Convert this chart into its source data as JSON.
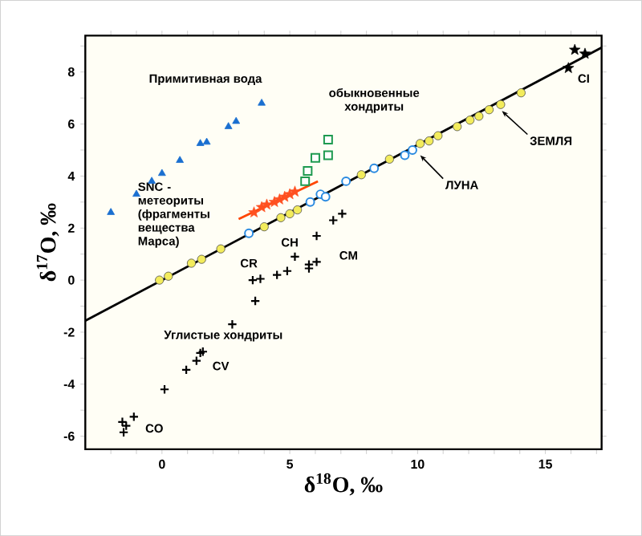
{
  "chart_data": {
    "type": "scatter",
    "xlabel": "δ$^{18}$O, ‰",
    "ylabel": "δ$^{17}$O, ‰",
    "xlim": [
      -3,
      17.2
    ],
    "ylim": [
      -6.5,
      9.4
    ],
    "xticks": [
      {
        "value": -2,
        "label": null
      },
      {
        "value": -1,
        "label": null
      },
      0,
      {
        "value": 1,
        "label": null
      },
      {
        "value": 2,
        "label": null
      },
      {
        "value": 3,
        "label": null
      },
      {
        "value": 4,
        "label": null
      },
      5,
      {
        "value": 6,
        "label": null
      },
      {
        "value": 7,
        "label": null
      },
      {
        "value": 8,
        "label": null
      },
      {
        "value": 9,
        "label": null
      },
      10,
      {
        "value": 11,
        "label": null
      },
      {
        "value": 12,
        "label": null
      },
      {
        "value": 13,
        "label": null
      },
      {
        "value": 14,
        "label": null
      },
      15,
      {
        "value": 16,
        "label": null
      },
      {
        "value": 17,
        "label": null
      }
    ],
    "yticks": [
      -6,
      {
        "value": -5,
        "label": null
      },
      -4,
      {
        "value": -3,
        "label": null
      },
      -2,
      {
        "value": -1,
        "label": null
      },
      0,
      {
        "value": 1,
        "label": null
      },
      2,
      {
        "value": 3,
        "label": null
      },
      4,
      {
        "value": 5,
        "label": null
      },
      6,
      {
        "value": 7,
        "label": null
      },
      8,
      {
        "value": 9,
        "label": null
      }
    ],
    "series": [
      {
        "type": "line",
        "color": "#000000",
        "x": [
          -3,
          17.2
        ],
        "values": [
          -1.56,
          8.94
        ]
      },
      {
        "type": "line",
        "color": "#ff4500",
        "x": [
          3.0,
          6.1
        ],
        "values": [
          2.35,
          3.8
        ]
      },
      {
        "marker": "triangle",
        "color": "#1a6fd0",
        "x": [
          -2.0,
          -1.0,
          -0.4,
          0.0,
          0.7,
          1.5,
          1.75,
          2.6,
          2.9,
          3.9
        ],
        "values": [
          2.6,
          3.3,
          3.8,
          4.1,
          4.6,
          5.25,
          5.3,
          5.9,
          6.1,
          6.8
        ]
      },
      {
        "marker": "square",
        "color": "#1e9a50",
        "x": [
          5.6,
          5.7,
          6.0,
          6.5,
          6.5
        ],
        "values": [
          3.8,
          4.2,
          4.7,
          4.8,
          5.4
        ]
      },
      {
        "marker": "star",
        "color": "#ff5020",
        "x": [
          3.6,
          3.9,
          4.1,
          4.4,
          4.6,
          4.8,
          5.0,
          5.2
        ],
        "values": [
          2.6,
          2.8,
          2.9,
          3.0,
          3.1,
          3.2,
          3.3,
          3.4
        ]
      },
      {
        "marker": "circle",
        "color": "#2a8ae0",
        "x": [
          3.4,
          5.8,
          6.2,
          6.4,
          7.2,
          8.3,
          9.5,
          9.8
        ],
        "values": [
          1.8,
          3.0,
          3.3,
          3.2,
          3.8,
          4.3,
          4.8,
          5.0
        ]
      },
      {
        "marker": "circle",
        "color": "#f3ec5c",
        "x": [
          -0.1,
          0.25,
          1.15,
          1.55,
          2.3,
          4.0,
          4.65,
          5.0,
          5.3,
          7.8,
          8.9,
          10.1,
          10.45,
          10.8,
          11.55,
          12.05,
          12.4,
          12.8,
          13.25,
          14.05
        ],
        "values": [
          0.0,
          0.15,
          0.65,
          0.8,
          1.2,
          2.05,
          2.4,
          2.55,
          2.7,
          4.05,
          4.65,
          5.25,
          5.35,
          5.55,
          5.9,
          6.15,
          6.3,
          6.55,
          6.75,
          7.2
        ]
      },
      {
        "marker": "star",
        "color": "#000000",
        "x": [
          15.9,
          16.15,
          16.55
        ],
        "values": [
          8.15,
          8.85,
          8.7
        ]
      },
      {
        "marker": "cross",
        "color": "#000000",
        "x": [
          -1.55,
          -1.4,
          -1.1,
          -1.5,
          0.1,
          0.95,
          1.35,
          1.5,
          1.6,
          2.75,
          3.55,
          3.85,
          3.65,
          4.5,
          4.9,
          5.2,
          5.75,
          6.05,
          5.75,
          6.05,
          6.7,
          7.05
        ],
        "values": [
          -5.45,
          -5.6,
          -5.25,
          -5.85,
          -4.2,
          -3.45,
          -3.1,
          -2.8,
          -2.75,
          -1.7,
          0.0,
          0.05,
          -0.8,
          0.2,
          0.35,
          0.9,
          0.45,
          0.7,
          0.6,
          1.7,
          2.3,
          2.55
        ]
      }
    ],
    "annotations": [
      "Примитивная вода",
      "обыкновенные хондриты",
      "SNC - метеориты (фрагменты вещества Марса)",
      "CR",
      "CH",
      "CM",
      "Углистые хондриты",
      "CV",
      "CO",
      "CI",
      {
        "text": "ЗЕМЛЯ",
        "x": 13.3,
        "y": 6.5
      },
      {
        "text": "ЛУНА",
        "x": 10.1,
        "y": 4.8
      }
    ]
  }
}
